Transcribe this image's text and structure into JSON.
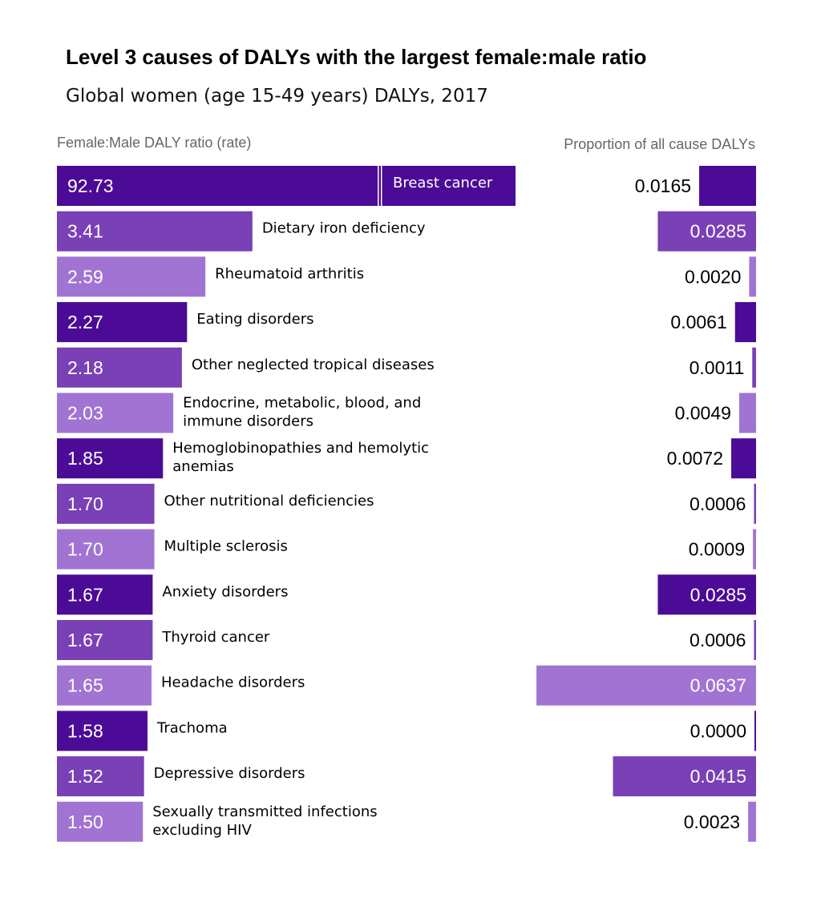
{
  "title": "Level 3 causes of DALYs with the largest female:male ratio",
  "subtitle": "Global women (age 15-49 years) DALYs, 2017",
  "left_header": "Female:Male DALY ratio (rate)",
  "right_header": "Proportion of all cause DALYs",
  "colors": {
    "dark": "#4b0b96",
    "medium": "#7a40b6",
    "light": "#a174d3",
    "break_line": "#ffffff"
  },
  "chart_data": {
    "type": "bar",
    "title": "Level 3 causes of DALYs with the largest female:male ratio",
    "subtitle": "Global women (age 15-49 years) DALYs, 2017",
    "left_axis_label": "Female:Male DALY ratio (rate)",
    "right_axis_label": "Proportion of all cause DALYs",
    "axis_break_on_first_bar": true,
    "categories": [
      [
        "Breast cancer"
      ],
      [
        "Dietary iron deficiency"
      ],
      [
        "Rheumatoid arthritis"
      ],
      [
        "Eating disorders"
      ],
      [
        "Other neglected tropical diseases"
      ],
      [
        "Endocrine, metabolic, blood, and",
        "immune disorders"
      ],
      [
        "Hemoglobinopathies and hemolytic",
        "anemias"
      ],
      [
        "Other nutritional deficiencies"
      ],
      [
        "Multiple sclerosis"
      ],
      [
        "Anxiety disorders"
      ],
      [
        "Thyroid cancer"
      ],
      [
        "Headache disorders"
      ],
      [
        "Trachoma"
      ],
      [
        "Depressive disorders"
      ],
      [
        "Sexually transmitted infections",
        "excluding HIV"
      ]
    ],
    "ratio_labels": [
      "92.73",
      "3.41",
      "2.59",
      "2.27",
      "2.18",
      "2.03",
      "1.85",
      "1.70",
      "1.70",
      "1.67",
      "1.67",
      "1.65",
      "1.58",
      "1.52",
      "1.50"
    ],
    "ratio_values": [
      92.73,
      3.41,
      2.59,
      2.27,
      2.18,
      2.03,
      1.85,
      1.7,
      1.7,
      1.67,
      1.67,
      1.65,
      1.58,
      1.52,
      1.5
    ],
    "proportion_labels": [
      "0.0165",
      "0.0285",
      "0.0020",
      "0.0061",
      "0.0011",
      "0.0049",
      "0.0072",
      "0.0006",
      "0.0009",
      "0.0285",
      "0.0006",
      "0.0637",
      "0.0000",
      "0.0415",
      "0.0023"
    ],
    "proportion_values": [
      0.0165,
      0.0285,
      0.002,
      0.0061,
      0.0011,
      0.0049,
      0.0072,
      0.0006,
      0.0009,
      0.0285,
      0.0006,
      0.0637,
      0.0,
      0.0415,
      0.0023
    ],
    "color_cycle": [
      "dark",
      "medium",
      "light"
    ]
  }
}
